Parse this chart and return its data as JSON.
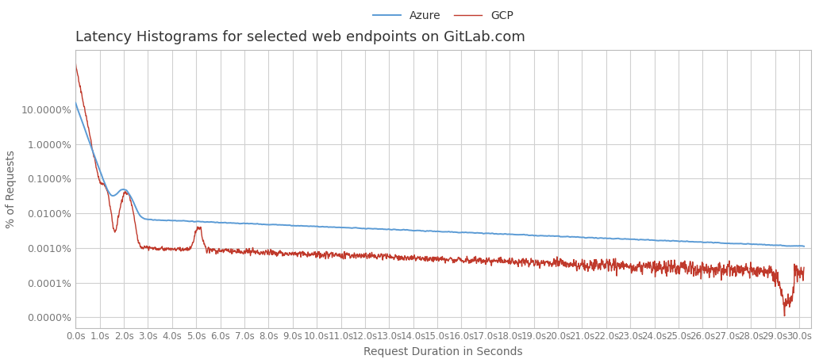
{
  "title": "Latency Histograms for selected web endpoints on GitLab.com",
  "xlabel": "Request Duration in Seconds",
  "ylabel": "% of Requests",
  "azure_color": "#5b9bd5",
  "gcp_color": "#c0392b",
  "background_color": "#ffffff",
  "grid_color": "#d0d0d0",
  "legend_labels": [
    "Azure",
    "GCP"
  ],
  "yticks": [
    1e-05,
    0.0001,
    0.001,
    0.01,
    0.1,
    1.0,
    10.0
  ],
  "ylabels": [
    "0.0000%",
    "0.0001%",
    "0.0010%",
    "0.0100%",
    "0.1000%",
    "1.0000%",
    "10.0000%"
  ],
  "ylim": [
    5e-06,
    500
  ],
  "xlim": [
    0,
    30.5
  ],
  "figsize": [
    10.32,
    4.58
  ],
  "dpi": 100
}
